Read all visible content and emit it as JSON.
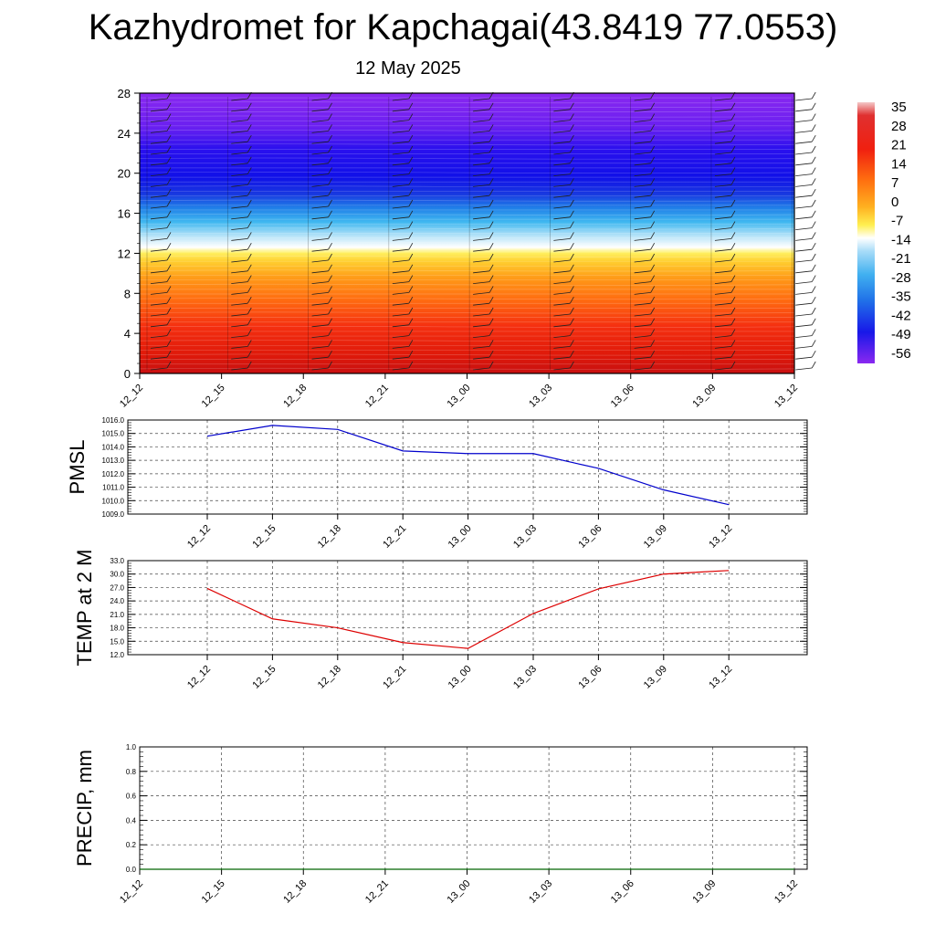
{
  "title": "Kazhydromet for Kapchagai(43.8419 77.0553)",
  "subtitle": "12 May 2025",
  "chart_data": [
    {
      "type": "heatmap",
      "name": "vertical-profile",
      "ylim": [
        0,
        28
      ],
      "y_ticks": [
        "0",
        "4",
        "8",
        "12",
        "16",
        "20",
        "24",
        "28"
      ],
      "x_ticks": [
        "12_12",
        "12_15",
        "12_18",
        "12_21",
        "13_00",
        "13_03",
        "13_06",
        "13_09",
        "13_12"
      ],
      "z_levels_approx": [
        {
          "y": 0,
          "value": 30
        },
        {
          "y": 4,
          "value": 21
        },
        {
          "y": 8,
          "value": 9
        },
        {
          "y": 12,
          "value": -8
        },
        {
          "y": 13,
          "value": -14
        },
        {
          "y": 16,
          "value": -38
        },
        {
          "y": 19,
          "value": -56
        },
        {
          "y": 24,
          "value": -60
        },
        {
          "y": 28,
          "value": -62
        }
      ],
      "colorbar_labels": [
        "35",
        "28",
        "21",
        "14",
        "7",
        "0",
        "-7",
        "-14",
        "-21",
        "-28",
        "-35",
        "-42",
        "-49",
        "-56"
      ]
    },
    {
      "type": "line",
      "name": "pmsl",
      "ylabel": "PMSL",
      "ylim": [
        1009.0,
        1016.0
      ],
      "y_ticks": [
        "1009.0",
        "1010.0",
        "1011.0",
        "1012.0",
        "1013.0",
        "1014.0",
        "1015.0",
        "1016.0"
      ],
      "categories": [
        "12_12",
        "12_15",
        "12_18",
        "12_21",
        "13_00",
        "13_03",
        "13_06",
        "13_09",
        "13_12"
      ],
      "values": [
        1014.8,
        1015.6,
        1015.3,
        1013.7,
        1013.5,
        1013.5,
        1012.4,
        1010.8,
        1009.7
      ],
      "color": "#0000cc",
      "grid": true
    },
    {
      "type": "line",
      "name": "temp2m",
      "ylabel": "TEMP at 2 M",
      "ylim": [
        12.0,
        33.0
      ],
      "y_ticks": [
        "12.0",
        "15.0",
        "18.0",
        "21.0",
        "24.0",
        "27.0",
        "30.0",
        "33.0"
      ],
      "categories": [
        "12_12",
        "12_15",
        "12_18",
        "12_21",
        "13_00",
        "13_03",
        "13_06",
        "13_09",
        "13_12"
      ],
      "values": [
        26.8,
        20.0,
        18.0,
        14.7,
        13.4,
        21.2,
        26.7,
        30.0,
        30.8
      ],
      "color": "#dd0000",
      "grid": true
    },
    {
      "type": "line",
      "name": "precip",
      "ylabel": "PRECIP, mm",
      "ylim": [
        0.0,
        1.0
      ],
      "y_ticks": [
        "0.0",
        "0.2",
        "0.4",
        "0.6",
        "0.8",
        "1.0"
      ],
      "x_ticks": [
        "12_12",
        "12_15",
        "12_18",
        "12_21",
        "13_00",
        "13_03",
        "13_06",
        "13_09",
        "13_12"
      ],
      "values": [
        0,
        0,
        0,
        0,
        0,
        0,
        0,
        0,
        0
      ],
      "color": "#006400",
      "grid": true
    }
  ]
}
